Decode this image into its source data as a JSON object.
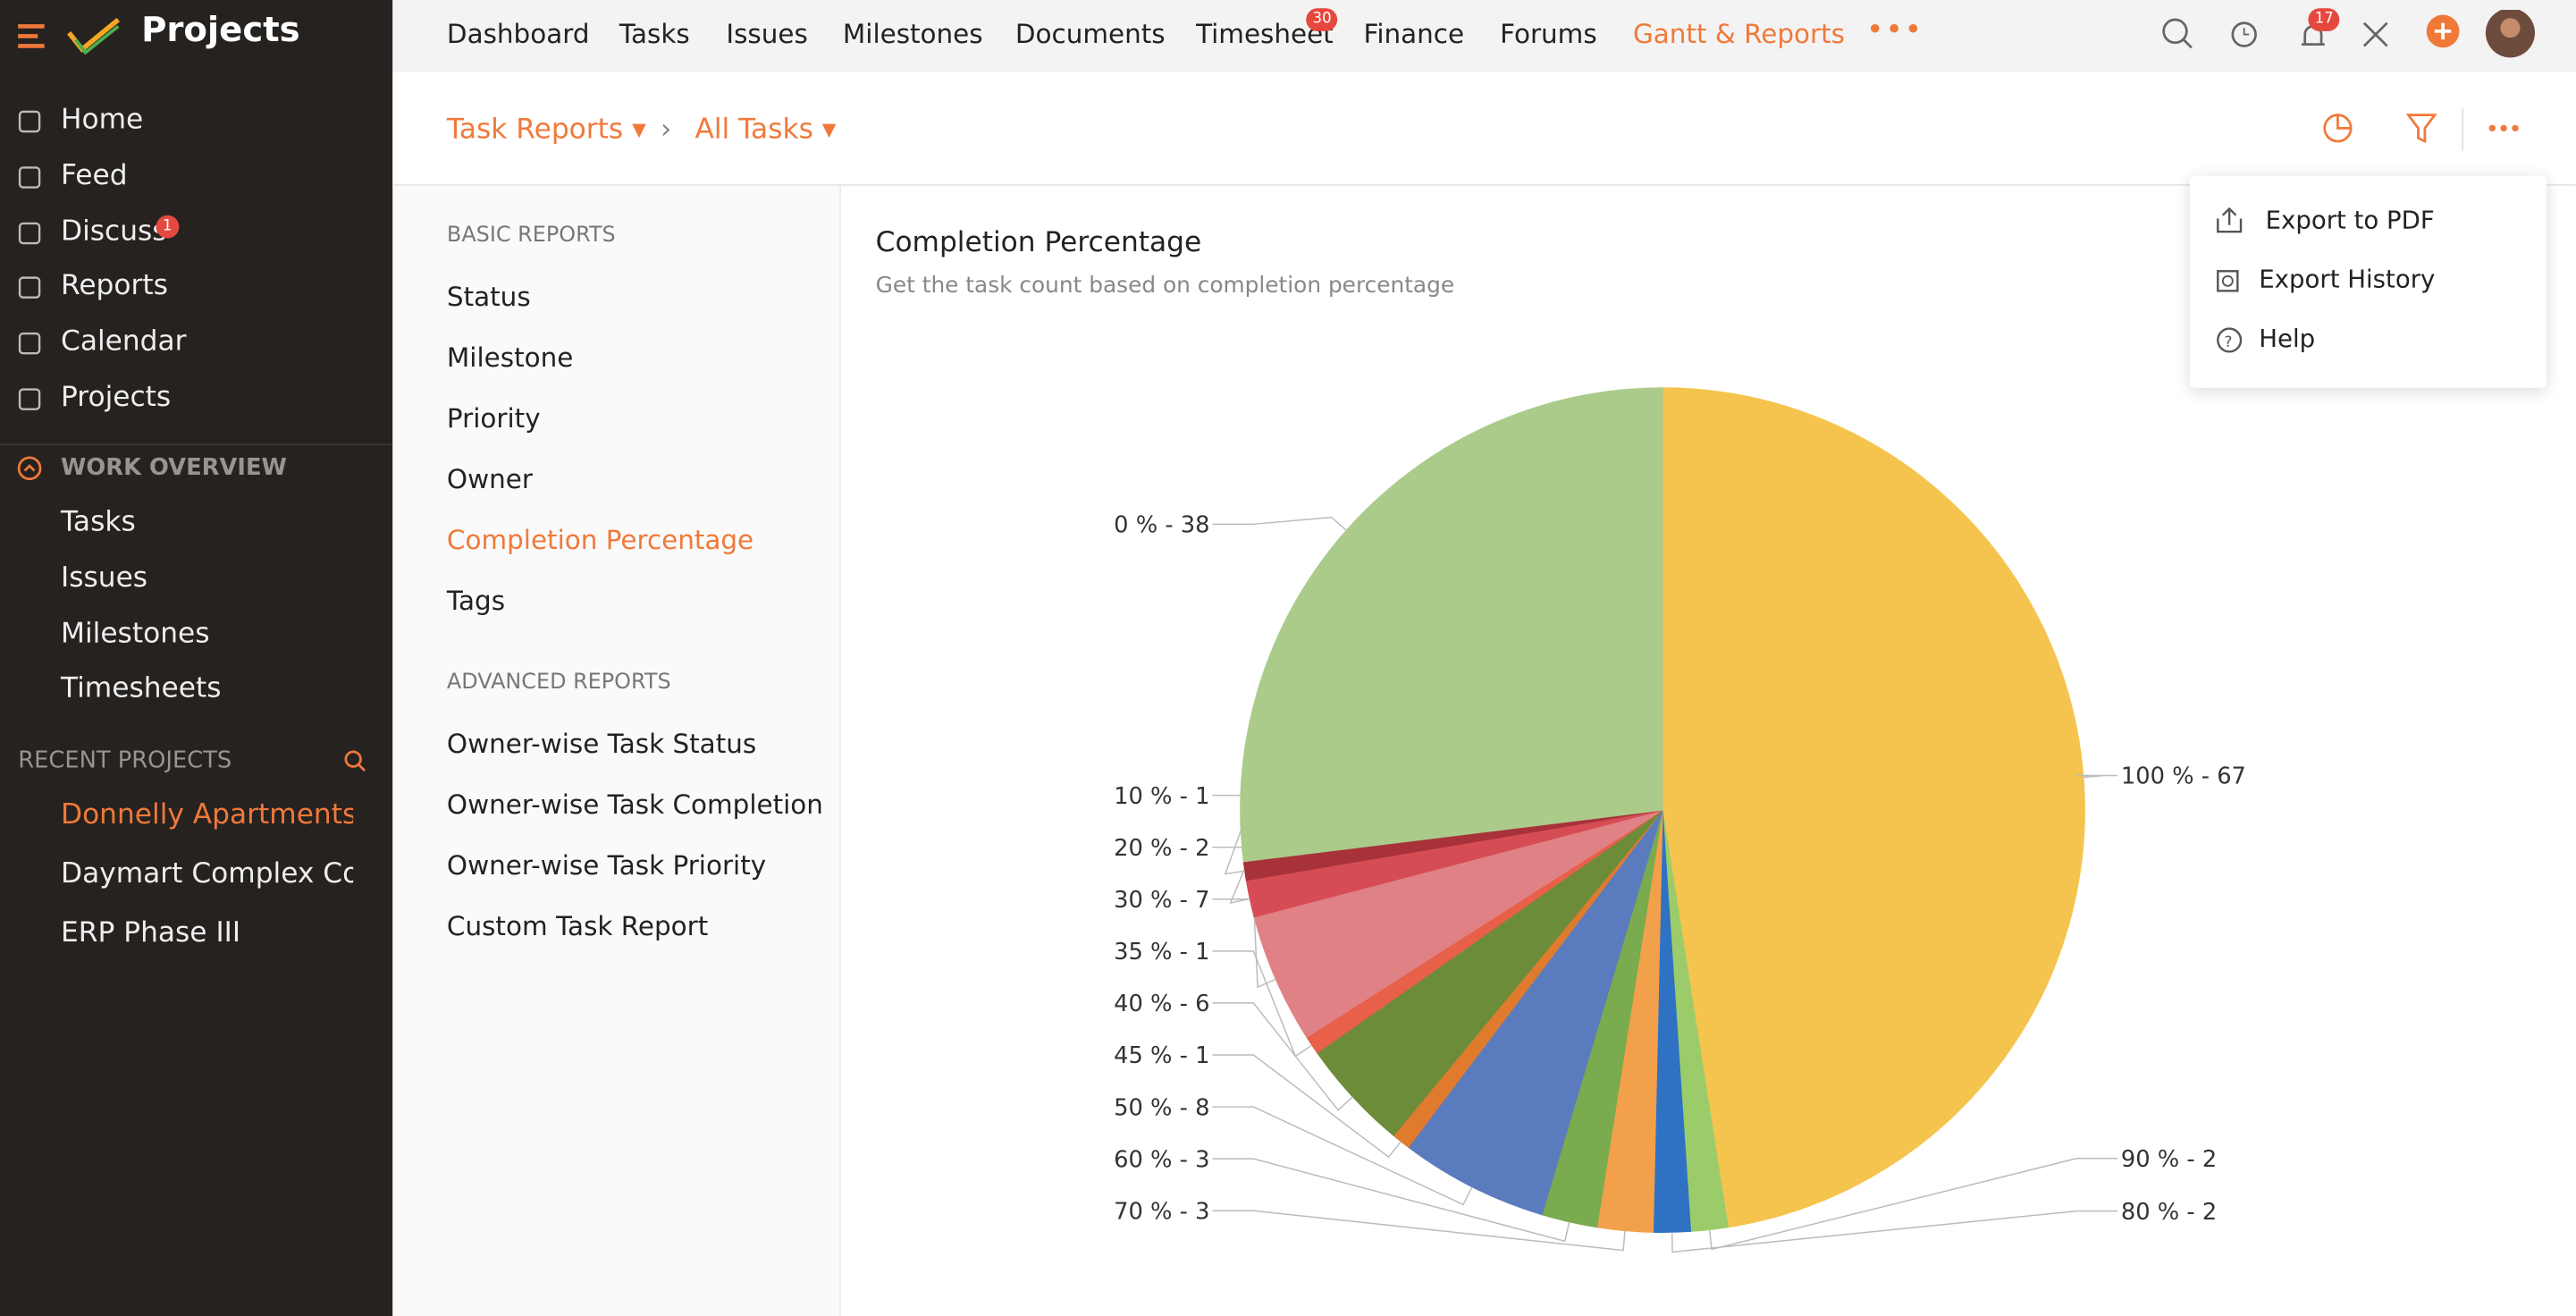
{
  "sidebar": {
    "brand": "Projects",
    "nav": [
      "Home",
      "Feed",
      "Discuss",
      "Reports",
      "Calendar",
      "Projects"
    ],
    "discuss_badge": 1,
    "work_overview": {
      "title": "WORK OVERVIEW",
      "items": [
        "Tasks",
        "Issues",
        "Milestones",
        "Timesheets"
      ]
    },
    "recent_projects": {
      "title": "RECENT PROJECTS",
      "items": [
        "Donnelly Apartments C",
        "Daymart Complex Cons",
        "ERP Phase III"
      ]
    }
  },
  "topnav": {
    "tabs": [
      "Dashboard",
      "Tasks",
      "Issues",
      "Milestones",
      "Documents",
      "Timesheet",
      "Finance",
      "Forums",
      "Gantt & Reports"
    ],
    "timesheet_badge": 30,
    "notification_badge": 17
  },
  "breadcrumb": [
    "Task Reports",
    "All Tasks"
  ],
  "reports": {
    "basic_title": "BASIC REPORTS",
    "basic": [
      "Status",
      "Milestone",
      "Priority",
      "Owner",
      "Completion Percentage",
      "Tags"
    ],
    "advanced_title": "ADVANCED REPORTS",
    "advanced": [
      "Owner-wise Task Status",
      "Owner-wise Task Completion",
      "Owner-wise Task Priority",
      "Custom Task Report"
    ]
  },
  "menu": [
    "Export to PDF",
    "Export History",
    "Help"
  ],
  "chart_data": {
    "type": "pie",
    "title": "Completion Percentage",
    "subtitle": "Get the task count based on completion percentage",
    "categories": [
      "0 %",
      "10 %",
      "20 %",
      "30 %",
      "35 %",
      "40 %",
      "45 %",
      "50 %",
      "60 %",
      "70 %",
      "80 %",
      "90 %",
      "100 %"
    ],
    "values": [
      38,
      1,
      2,
      7,
      1,
      6,
      1,
      8,
      3,
      3,
      2,
      2,
      67
    ],
    "colors": [
      "#abcb8b",
      "#a8323a",
      "#d64c55",
      "#e08285",
      "#e8604a",
      "#6d8c3a",
      "#e07b2e",
      "#5b7bbf",
      "#7aab4e",
      "#f2a04a",
      "#2f72c4",
      "#9ccc6a",
      "#f5c44e"
    ]
  }
}
